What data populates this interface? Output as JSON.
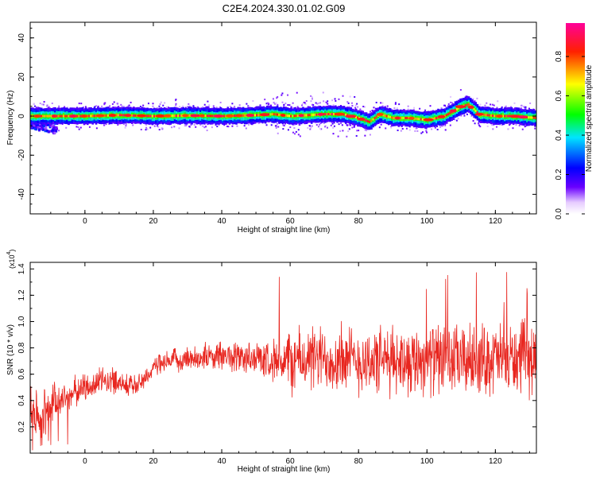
{
  "title": "C2E4.2024.330.01.02.G09",
  "colors": {
    "snr_line": "#e8261f",
    "axes": "#000000",
    "background": "#ffffff"
  },
  "colorbar": {
    "label": "Normalized spectral amplitude",
    "ticks": [
      "0.0",
      "0.2",
      "0.4",
      "0.6",
      "0.8"
    ],
    "tick_values": [
      0.0,
      0.2,
      0.4,
      0.6,
      0.8
    ],
    "range": [
      0,
      0.97
    ],
    "colormap": [
      "#ffffff",
      "#6a00ff",
      "#0000ff",
      "#00ffff",
      "#00ff00",
      "#ffff00",
      "#ff0000",
      "#ff0099"
    ]
  },
  "chart_data": [
    {
      "type": "heatmap",
      "id": "spectrogram",
      "xlabel": "Height of straight line (km)",
      "ylabel": "Frequency (Hz)",
      "xlim": [
        -16,
        132
      ],
      "ylim": [
        -50,
        48
      ],
      "xticks": [
        0,
        20,
        40,
        60,
        80,
        100,
        120
      ],
      "yticks": [
        -40,
        -20,
        0,
        20,
        40
      ],
      "ridge": {
        "x": [
          -16,
          -10,
          -5,
          0,
          10,
          20,
          30,
          40,
          50,
          55,
          60,
          65,
          70,
          75,
          80,
          83,
          86,
          90,
          95,
          100,
          105,
          108,
          110,
          112,
          115,
          120,
          125,
          132
        ],
        "y": [
          0,
          0,
          0,
          0,
          0.5,
          0,
          0.3,
          0,
          0.5,
          1,
          0,
          0.5,
          1,
          1,
          -1,
          -3,
          1,
          -1,
          -1,
          -2,
          0,
          3,
          5,
          6,
          1,
          0,
          0,
          -1
        ]
      },
      "grid": false
    },
    {
      "type": "line",
      "id": "snr",
      "xlabel": "Height of straight line (km)",
      "ylabel": "SNR (10 * v/v)",
      "multiplier": "(x10",
      "multiplier_exp": "4",
      "xlim": [
        -16,
        132
      ],
      "ylim": [
        0,
        1.45
      ],
      "xticks": [
        0,
        20,
        40,
        60,
        80,
        100,
        120
      ],
      "yticks": [
        0.2,
        0.4,
        0.6,
        0.8,
        1.0,
        1.2,
        1.4
      ],
      "trend": {
        "x": [
          -16,
          -12,
          -8,
          -4,
          0,
          5,
          10,
          15,
          20,
          25,
          30,
          40,
          50,
          60,
          70,
          80,
          90,
          100,
          110,
          120,
          132
        ],
        "y": [
          0.35,
          0.3,
          0.4,
          0.45,
          0.5,
          0.55,
          0.55,
          0.5,
          0.65,
          0.7,
          0.72,
          0.74,
          0.72,
          0.7,
          0.72,
          0.7,
          0.7,
          0.72,
          0.7,
          0.72,
          0.7
        ]
      },
      "noise_amplitude": {
        "x": [
          -16,
          -5,
          20,
          35,
          55,
          60,
          132
        ],
        "y": [
          0.25,
          0.12,
          0.08,
          0.1,
          0.15,
          0.25,
          0.28
        ]
      },
      "series": [
        {
          "values_note": "dense sample series generated from trend and noise_amplitude"
        }
      ],
      "grid": false
    }
  ]
}
